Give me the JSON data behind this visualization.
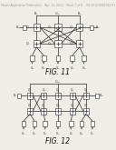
{
  "background_color": "#f0ede8",
  "header_text": "Patent Application Publication    Apr. 12, 2012   Sheet 7 of 8    US 2012/0081931 P1",
  "header_fontsize": 2.2,
  "fig11_label": "FIG. 11",
  "fig12_label": "FIG. 12",
  "fig_label_fontsize": 5.5,
  "diagram_color": "#3a3a3a",
  "line_color": "#2a2a2a",
  "line_width": 0.5,
  "label_fs": 2.8
}
